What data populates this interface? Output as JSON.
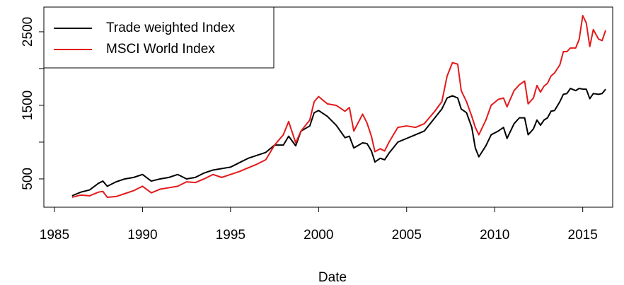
{
  "chart_data": {
    "type": "line",
    "x_label": "Date",
    "legend": "topleft",
    "xlim": [
      1984.4,
      2016.7
    ],
    "xticks": [
      1985,
      1990,
      1995,
      2000,
      2005,
      2010,
      2015
    ],
    "ylim": [
      115,
      2836
    ],
    "yticks": [
      500,
      1500,
      2500
    ],
    "y_minor_ticks": [
      1000,
      2000
    ],
    "x": [
      1986.0,
      1986.5,
      1987.0,
      1987.5,
      1987.75,
      1988.0,
      1988.5,
      1989.0,
      1989.5,
      1990.0,
      1990.5,
      1991.0,
      1991.5,
      1992.0,
      1992.5,
      1993.0,
      1993.5,
      1994.0,
      1994.5,
      1995.0,
      1995.5,
      1996.0,
      1996.5,
      1997.0,
      1997.5,
      1998.0,
      1998.3,
      1998.7,
      1999.0,
      1999.5,
      1999.75,
      2000.0,
      2000.5,
      2001.0,
      2001.5,
      2001.75,
      2002.0,
      2002.5,
      2002.75,
      2003.0,
      2003.2,
      2003.5,
      2003.75,
      2004.0,
      2004.5,
      2005.0,
      2005.5,
      2006.0,
      2006.6,
      2007.0,
      2007.3,
      2007.6,
      2007.9,
      2008.1,
      2008.4,
      2008.7,
      2008.9,
      2009.1,
      2009.5,
      2009.8,
      2010.2,
      2010.5,
      2010.7,
      2011.1,
      2011.4,
      2011.7,
      2011.9,
      2012.2,
      2012.4,
      2012.6,
      2012.8,
      2013.0,
      2013.2,
      2013.4,
      2013.7,
      2013.9,
      2014.1,
      2014.3,
      2014.6,
      2014.8,
      2015.0,
      2015.2,
      2015.4,
      2015.6,
      2015.9,
      2016.1,
      2016.3
    ],
    "series": [
      {
        "name": "Trade weighted Index",
        "color": "#000000",
        "values": [
          270,
          320,
          350,
          440,
          470,
          400,
          460,
          500,
          520,
          560,
          470,
          500,
          520,
          560,
          500,
          520,
          580,
          620,
          640,
          660,
          720,
          780,
          820,
          860,
          960,
          960,
          1080,
          950,
          1150,
          1220,
          1400,
          1430,
          1350,
          1230,
          1060,
          1080,
          920,
          990,
          980,
          880,
          730,
          780,
          760,
          850,
          1000,
          1050,
          1100,
          1150,
          1330,
          1450,
          1600,
          1630,
          1600,
          1450,
          1400,
          1200,
          920,
          800,
          950,
          1100,
          1150,
          1200,
          1050,
          1250,
          1330,
          1330,
          1100,
          1180,
          1300,
          1230,
          1300,
          1330,
          1420,
          1430,
          1550,
          1650,
          1660,
          1730,
          1700,
          1730,
          1720,
          1720,
          1590,
          1660,
          1650,
          1660,
          1720
        ]
      },
      {
        "name": "MSCI World Index",
        "color": "#e31a1c",
        "values": [
          250,
          280,
          270,
          320,
          330,
          250,
          260,
          300,
          340,
          400,
          310,
          360,
          380,
          400,
          460,
          450,
          500,
          560,
          520,
          560,
          600,
          650,
          700,
          760,
          960,
          1100,
          1280,
          990,
          1150,
          1300,
          1550,
          1620,
          1520,
          1500,
          1420,
          1470,
          1150,
          1380,
          1260,
          1080,
          870,
          910,
          880,
          1000,
          1200,
          1220,
          1200,
          1250,
          1420,
          1550,
          1900,
          2080,
          2060,
          1700,
          1550,
          1350,
          1200,
          1100,
          1300,
          1500,
          1580,
          1600,
          1480,
          1700,
          1780,
          1830,
          1520,
          1600,
          1770,
          1680,
          1760,
          1800,
          1900,
          1940,
          2050,
          2230,
          2230,
          2280,
          2280,
          2400,
          2720,
          2620,
          2300,
          2530,
          2400,
          2380,
          2520
        ]
      }
    ]
  }
}
